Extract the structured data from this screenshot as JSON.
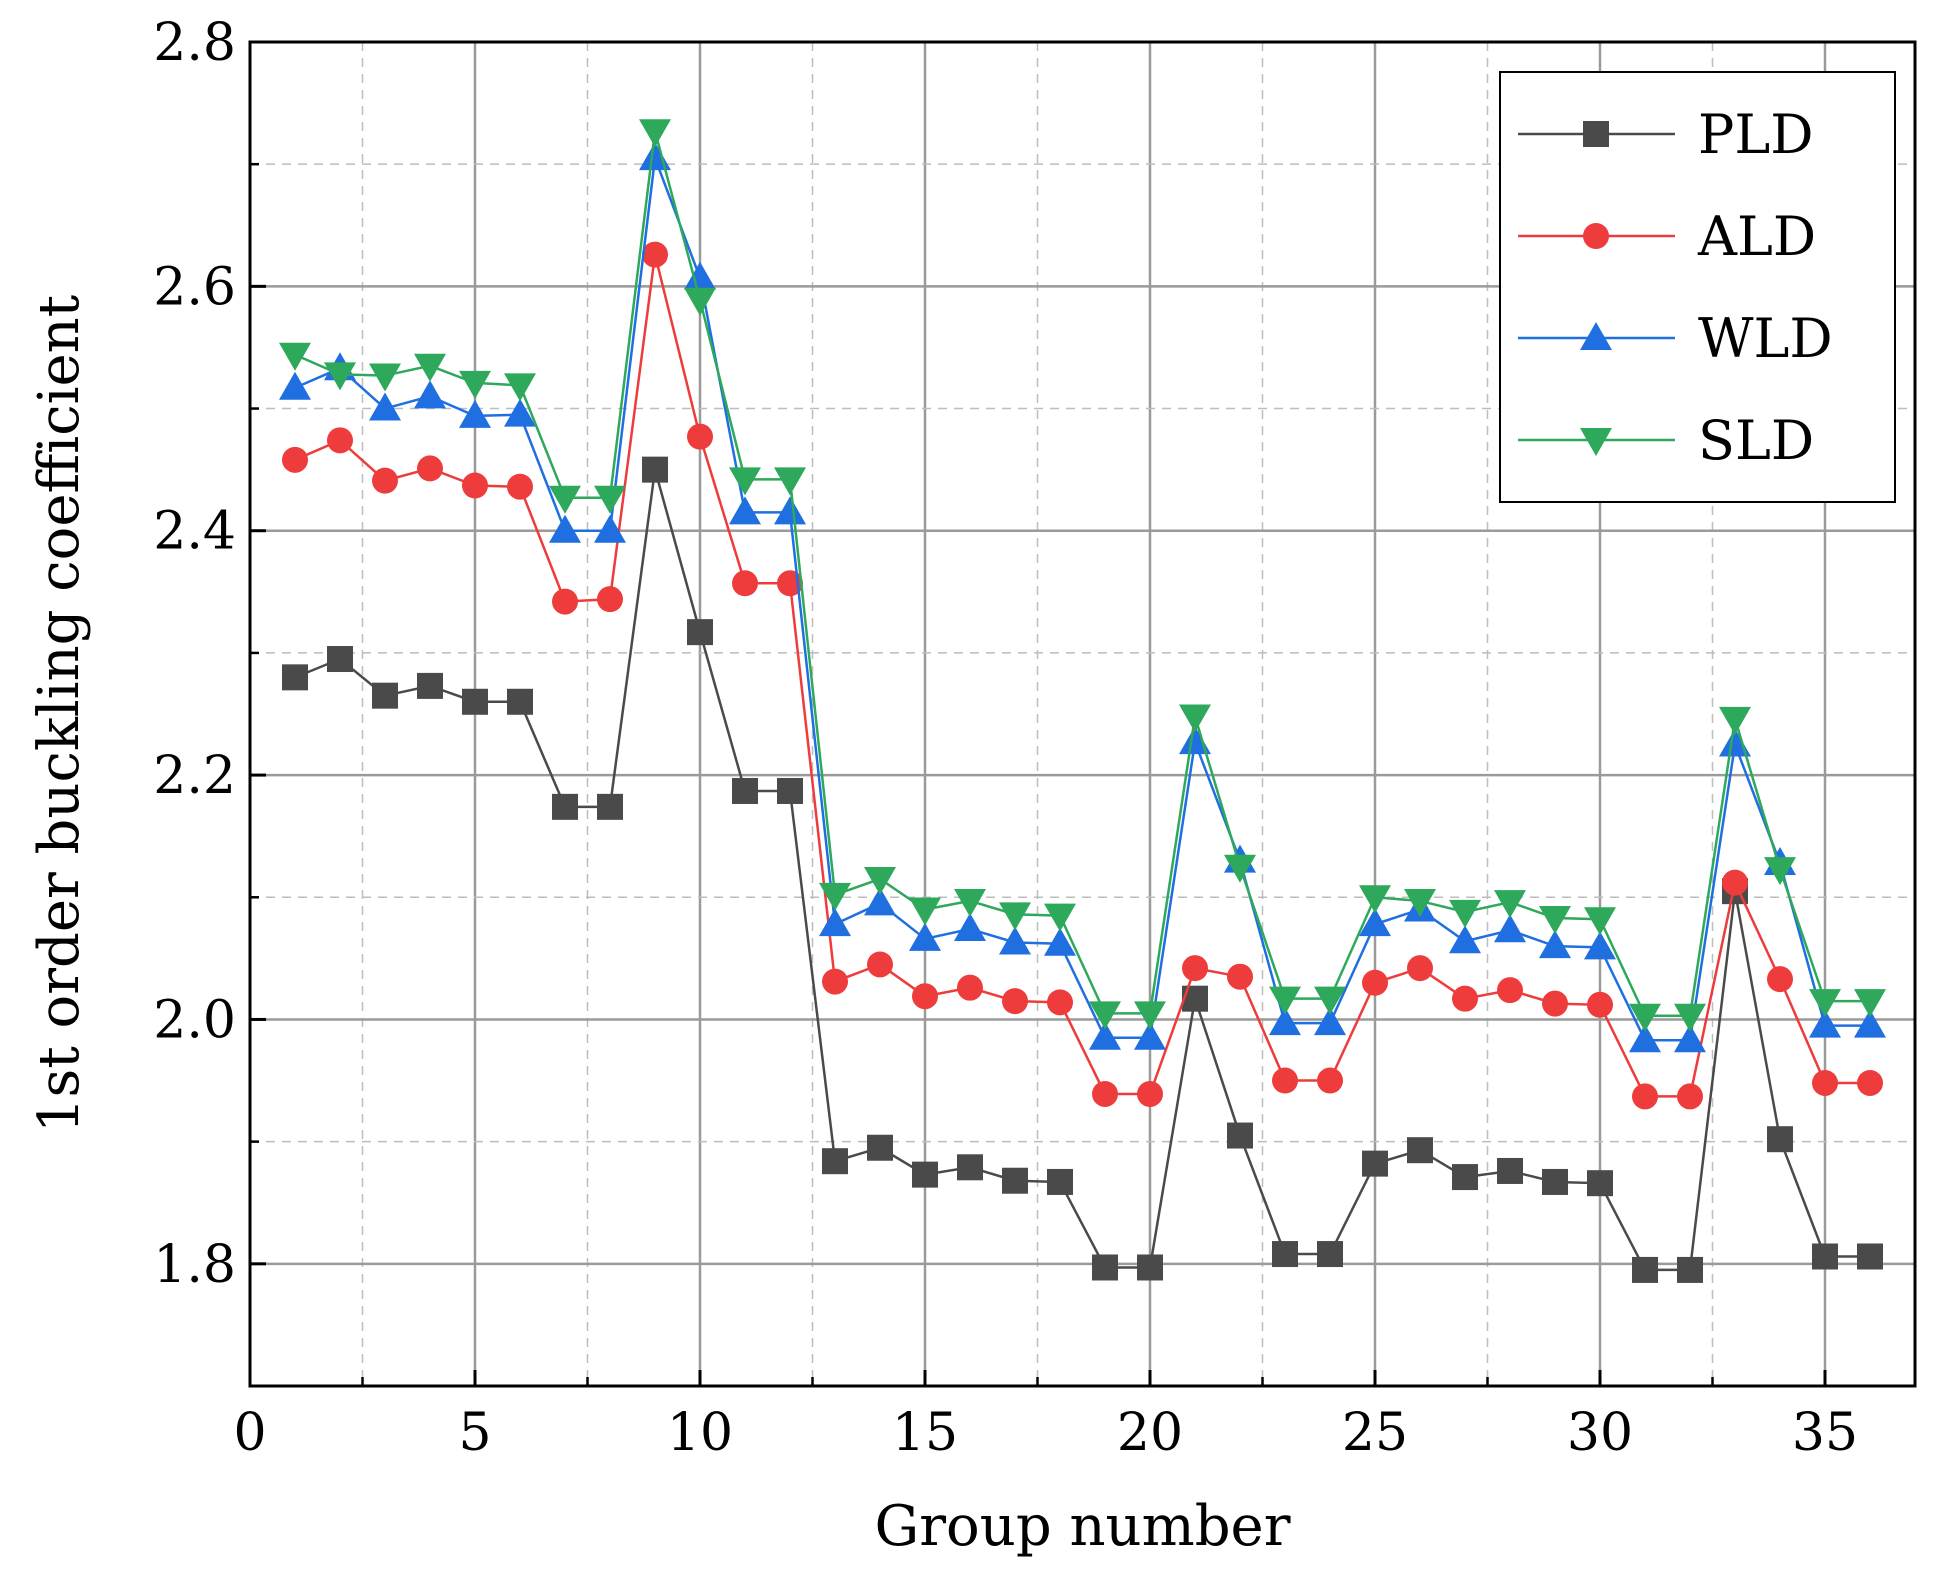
{
  "chart_data": {
    "type": "line",
    "title": "",
    "xlabel": "Group number",
    "ylabel": "1st order buckling coefficient",
    "xlim": [
      0,
      37
    ],
    "ylim": [
      1.7,
      2.8
    ],
    "xticks": [
      0,
      5,
      10,
      15,
      20,
      25,
      30,
      35
    ],
    "xtick_labels": [
      "0",
      "5",
      "10",
      "15",
      "20",
      "25",
      "30",
      "35"
    ],
    "yticks": [
      1.8,
      2.0,
      2.2,
      2.4,
      2.6,
      2.8
    ],
    "ytick_labels": [
      "1.8",
      "2.0",
      "2.2",
      "2.4",
      "2.6",
      "2.8"
    ],
    "grid": true,
    "legend_position": "top-right",
    "x": [
      1,
      2,
      3,
      4,
      5,
      6,
      7,
      8,
      9,
      10,
      11,
      12,
      13,
      14,
      15,
      16,
      17,
      18,
      19,
      20,
      21,
      22,
      23,
      24,
      25,
      26,
      27,
      28,
      29,
      30,
      31,
      32,
      33,
      34,
      35,
      36
    ],
    "series": [
      {
        "name": "PLD",
        "color": "#4a4a4a",
        "marker": "square",
        "values": [
          2.28,
          2.295,
          2.265,
          2.273,
          2.26,
          2.26,
          2.174,
          2.174,
          2.45,
          2.317,
          2.187,
          2.187,
          1.884,
          1.895,
          1.873,
          1.879,
          1.868,
          1.867,
          1.797,
          1.797,
          2.017,
          1.905,
          1.808,
          1.808,
          1.882,
          1.893,
          1.871,
          1.876,
          1.867,
          1.866,
          1.795,
          1.795,
          2.105,
          1.902,
          1.806,
          1.806
        ]
      },
      {
        "name": "ALD",
        "color": "#ee3b3b",
        "marker": "circle",
        "values": [
          2.458,
          2.474,
          2.441,
          2.451,
          2.437,
          2.436,
          2.342,
          2.344,
          2.626,
          2.477,
          2.357,
          2.357,
          2.031,
          2.045,
          2.019,
          2.026,
          2.015,
          2.014,
          1.939,
          1.939,
          2.042,
          2.035,
          1.95,
          1.95,
          2.03,
          2.042,
          2.017,
          2.024,
          2.013,
          2.012,
          1.937,
          1.937,
          2.112,
          2.033,
          1.948,
          1.948
        ]
      },
      {
        "name": "WLD",
        "color": "#1f6fe0",
        "marker": "triangle-up",
        "values": [
          2.517,
          2.533,
          2.5,
          2.51,
          2.494,
          2.495,
          2.4,
          2.4,
          2.705,
          2.607,
          2.415,
          2.415,
          2.078,
          2.095,
          2.066,
          2.074,
          2.063,
          2.062,
          1.985,
          1.985,
          2.227,
          2.13,
          1.997,
          1.997,
          2.078,
          2.09,
          2.064,
          2.073,
          2.06,
          2.059,
          1.983,
          1.983,
          2.225,
          2.128,
          1.995,
          1.995
        ]
      },
      {
        "name": "SLD",
        "color": "#2ea85b",
        "marker": "triangle-down",
        "values": [
          2.544,
          2.528,
          2.527,
          2.535,
          2.521,
          2.519,
          2.427,
          2.427,
          2.727,
          2.589,
          2.442,
          2.442,
          2.102,
          2.115,
          2.09,
          2.097,
          2.086,
          2.085,
          2.005,
          2.005,
          2.248,
          2.125,
          2.017,
          2.017,
          2.1,
          2.097,
          2.088,
          2.096,
          2.083,
          2.082,
          2.003,
          2.003,
          2.246,
          2.123,
          2.015,
          2.015
        ]
      }
    ]
  }
}
